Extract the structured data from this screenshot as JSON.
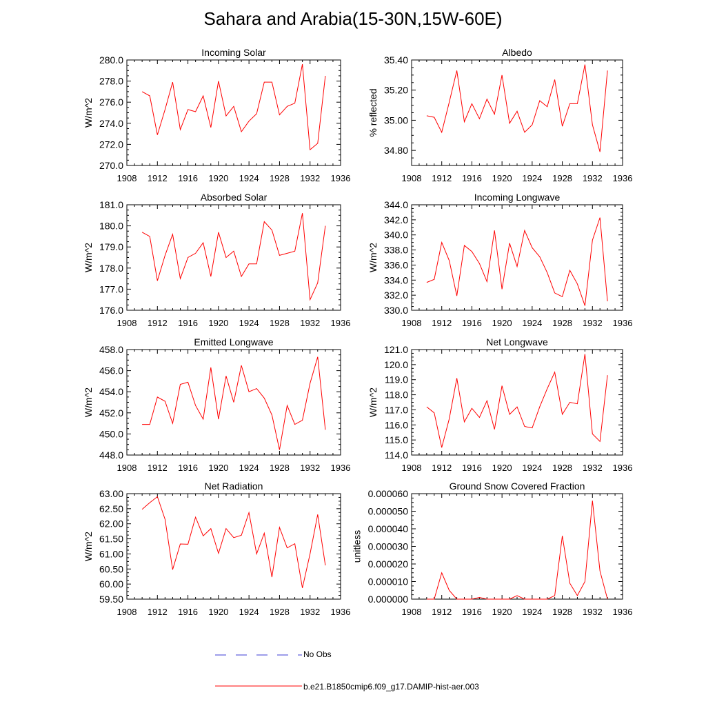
{
  "title": "Sahara and Arabia(15-30N,15W-60E)",
  "legend": {
    "entries": [
      {
        "label": "No Obs",
        "color": "#3b3bd4",
        "style": "dashed"
      },
      {
        "label": "b.e21.B1850cmip6.f09_g17.DAMIP-hist-aer.003",
        "color": "#ff0000",
        "style": "solid"
      }
    ]
  },
  "chart_data": [
    {
      "type": "line",
      "title": "Incoming Solar",
      "ylabel": "W/m^2",
      "xlim": [
        1908,
        1936
      ],
      "ylim": [
        270,
        280
      ],
      "xticks": [
        "1908",
        "1912",
        "1916",
        "1920",
        "1924",
        "1928",
        "1932",
        "1936"
      ],
      "yticks": [
        "270.0",
        "272.0",
        "274.0",
        "276.0",
        "278.0",
        "280.0"
      ],
      "x": [
        1910,
        1911,
        1912,
        1913,
        1914,
        1915,
        1916,
        1917,
        1918,
        1919,
        1920,
        1921,
        1922,
        1923,
        1924,
        1925,
        1926,
        1927,
        1928,
        1929,
        1930,
        1931,
        1932,
        1933,
        1934
      ],
      "series": [
        {
          "color": "#ff0000",
          "values": [
            277.0,
            276.6,
            272.9,
            275.3,
            277.9,
            273.4,
            275.3,
            275.1,
            276.6,
            273.6,
            278.0,
            274.7,
            275.6,
            273.2,
            274.2,
            274.9,
            277.9,
            277.9,
            274.8,
            275.6,
            275.9,
            279.6,
            271.5,
            272.1,
            278.5
          ]
        }
      ]
    },
    {
      "type": "line",
      "title": "Albedo",
      "ylabel": "% reflected",
      "xlim": [
        1908,
        1936
      ],
      "ylim": [
        34.7,
        35.4
      ],
      "xticks": [
        "1908",
        "1912",
        "1916",
        "1920",
        "1924",
        "1928",
        "1932",
        "1936"
      ],
      "yticks": [
        "34.80",
        "35.00",
        "35.20",
        "35.40"
      ],
      "x": [
        1910,
        1911,
        1912,
        1913,
        1914,
        1915,
        1916,
        1917,
        1918,
        1919,
        1920,
        1921,
        1922,
        1923,
        1924,
        1925,
        1926,
        1927,
        1928,
        1929,
        1930,
        1931,
        1932,
        1933,
        1934
      ],
      "series": [
        {
          "color": "#ff0000",
          "values": [
            35.03,
            35.02,
            34.92,
            35.12,
            35.33,
            34.99,
            35.11,
            35.01,
            35.14,
            35.04,
            35.3,
            34.98,
            35.06,
            34.92,
            34.97,
            35.13,
            35.09,
            35.27,
            34.96,
            35.11,
            35.11,
            35.37,
            34.97,
            34.79,
            35.33
          ]
        }
      ]
    },
    {
      "type": "line",
      "title": "Absorbed Solar",
      "ylabel": "W/m^2",
      "xlim": [
        1908,
        1936
      ],
      "ylim": [
        176,
        181
      ],
      "xticks": [
        "1908",
        "1912",
        "1916",
        "1920",
        "1924",
        "1928",
        "1932",
        "1936"
      ],
      "yticks": [
        "176.0",
        "177.0",
        "178.0",
        "179.0",
        "180.0",
        "181.0"
      ],
      "x": [
        1910,
        1911,
        1912,
        1913,
        1914,
        1915,
        1916,
        1917,
        1918,
        1919,
        1920,
        1921,
        1922,
        1923,
        1924,
        1925,
        1926,
        1927,
        1928,
        1929,
        1930,
        1931,
        1932,
        1933,
        1934
      ],
      "series": [
        {
          "color": "#ff0000",
          "values": [
            179.7,
            179.5,
            177.4,
            178.6,
            179.6,
            177.5,
            178.5,
            178.7,
            179.2,
            177.6,
            179.7,
            178.5,
            178.8,
            177.6,
            178.2,
            178.2,
            180.2,
            179.8,
            178.6,
            178.7,
            178.8,
            180.6,
            176.5,
            177.3,
            180.0
          ]
        }
      ]
    },
    {
      "type": "line",
      "title": "Incoming Longwave",
      "ylabel": "W/m^2",
      "xlim": [
        1908,
        1936
      ],
      "ylim": [
        330,
        344
      ],
      "xticks": [
        "1908",
        "1912",
        "1916",
        "1920",
        "1924",
        "1928",
        "1932",
        "1936"
      ],
      "yticks": [
        "330.0",
        "332.0",
        "334.0",
        "336.0",
        "338.0",
        "340.0",
        "342.0",
        "344.0"
      ],
      "x": [
        1910,
        1911,
        1912,
        1913,
        1914,
        1915,
        1916,
        1917,
        1918,
        1919,
        1920,
        1921,
        1922,
        1923,
        1924,
        1925,
        1926,
        1927,
        1928,
        1929,
        1930,
        1931,
        1932,
        1933,
        1934
      ],
      "series": [
        {
          "color": "#ff0000",
          "values": [
            333.7,
            334.1,
            339.0,
            336.6,
            331.9,
            338.6,
            337.8,
            336.2,
            333.8,
            340.6,
            332.8,
            338.9,
            335.8,
            340.6,
            338.3,
            337.1,
            335.0,
            332.3,
            331.8,
            335.3,
            333.5,
            330.6,
            339.3,
            342.3,
            331.2
          ]
        }
      ]
    },
    {
      "type": "line",
      "title": "Emitted Longwave",
      "ylabel": "W/m^2",
      "xlim": [
        1908,
        1936
      ],
      "ylim": [
        448,
        458
      ],
      "xticks": [
        "1908",
        "1912",
        "1916",
        "1920",
        "1924",
        "1928",
        "1932",
        "1936"
      ],
      "yticks": [
        "448.0",
        "450.0",
        "452.0",
        "454.0",
        "456.0",
        "458.0"
      ],
      "x": [
        1910,
        1911,
        1912,
        1913,
        1914,
        1915,
        1916,
        1917,
        1918,
        1919,
        1920,
        1921,
        1922,
        1923,
        1924,
        1925,
        1926,
        1927,
        1928,
        1929,
        1930,
        1931,
        1932,
        1933,
        1934
      ],
      "series": [
        {
          "color": "#ff0000",
          "values": [
            450.9,
            450.9,
            453.5,
            453.1,
            451.0,
            454.7,
            454.9,
            452.7,
            451.4,
            456.3,
            451.4,
            455.5,
            453.0,
            456.5,
            454.0,
            454.3,
            453.4,
            451.8,
            448.5,
            452.7,
            450.9,
            451.3,
            454.8,
            457.3,
            450.4
          ]
        }
      ]
    },
    {
      "type": "line",
      "title": "Net Longwave",
      "ylabel": "W/m^2",
      "xlim": [
        1908,
        1936
      ],
      "ylim": [
        114,
        121
      ],
      "xticks": [
        "1908",
        "1912",
        "1916",
        "1920",
        "1924",
        "1928",
        "1932",
        "1936"
      ],
      "yticks": [
        "114.0",
        "115.0",
        "116.0",
        "117.0",
        "118.0",
        "119.0",
        "120.0",
        "121.0"
      ],
      "x": [
        1910,
        1911,
        1912,
        1913,
        1914,
        1915,
        1916,
        1917,
        1918,
        1919,
        1920,
        1921,
        1922,
        1923,
        1924,
        1925,
        1926,
        1927,
        1928,
        1929,
        1930,
        1931,
        1932,
        1933,
        1934
      ],
      "series": [
        {
          "color": "#ff0000",
          "values": [
            117.2,
            116.8,
            114.5,
            116.4,
            119.1,
            116.2,
            117.1,
            116.5,
            117.6,
            115.7,
            118.6,
            116.7,
            117.2,
            115.9,
            115.8,
            117.2,
            118.4,
            119.5,
            116.7,
            117.5,
            117.4,
            120.7,
            115.4,
            114.9,
            119.3
          ]
        }
      ]
    },
    {
      "type": "line",
      "title": "Net Radiation",
      "ylabel": "W/m^2",
      "xlim": [
        1908,
        1936
      ],
      "ylim": [
        59.5,
        63.0
      ],
      "xticks": [
        "1908",
        "1912",
        "1916",
        "1920",
        "1924",
        "1928",
        "1932",
        "1936"
      ],
      "yticks": [
        "59.50",
        "60.00",
        "60.50",
        "61.00",
        "61.50",
        "62.00",
        "62.50",
        "63.00"
      ],
      "x": [
        1910,
        1911,
        1912,
        1913,
        1914,
        1915,
        1916,
        1917,
        1918,
        1919,
        1920,
        1921,
        1922,
        1923,
        1924,
        1925,
        1926,
        1927,
        1928,
        1929,
        1930,
        1931,
        1932,
        1933,
        1934
      ],
      "series": [
        {
          "color": "#ff0000",
          "values": [
            62.48,
            62.7,
            62.9,
            62.15,
            60.48,
            61.33,
            61.32,
            62.22,
            61.6,
            61.84,
            61.02,
            61.84,
            61.54,
            61.62,
            62.37,
            61.0,
            61.69,
            60.23,
            61.88,
            61.2,
            61.34,
            59.87,
            61.0,
            62.31,
            60.62
          ]
        }
      ]
    },
    {
      "type": "line",
      "title": "Ground Snow Covered Fraction",
      "ylabel": "unitless",
      "xlim": [
        1908,
        1936
      ],
      "ylim": [
        0,
        6e-05
      ],
      "xticks": [
        "1908",
        "1912",
        "1916",
        "1920",
        "1924",
        "1928",
        "1932",
        "1936"
      ],
      "yticks": [
        "0.000000",
        "0.000010",
        "0.000020",
        "0.000030",
        "0.000040",
        "0.000050",
        "0.000060"
      ],
      "x": [
        1910,
        1911,
        1912,
        1913,
        1914,
        1915,
        1916,
        1917,
        1918,
        1919,
        1920,
        1921,
        1922,
        1923,
        1924,
        1925,
        1926,
        1927,
        1928,
        1929,
        1930,
        1931,
        1932,
        1933,
        1934
      ],
      "series": [
        {
          "color": "#ff0000",
          "values": [
            0,
            0,
            1.5e-05,
            5e-06,
            0,
            0,
            0,
            1e-06,
            0,
            0,
            0,
            0,
            2e-06,
            0,
            0,
            0,
            0,
            2e-06,
            3.6e-05,
            9e-06,
            2e-06,
            1e-05,
            5.6e-05,
            1.6e-05,
            0
          ]
        }
      ]
    }
  ]
}
